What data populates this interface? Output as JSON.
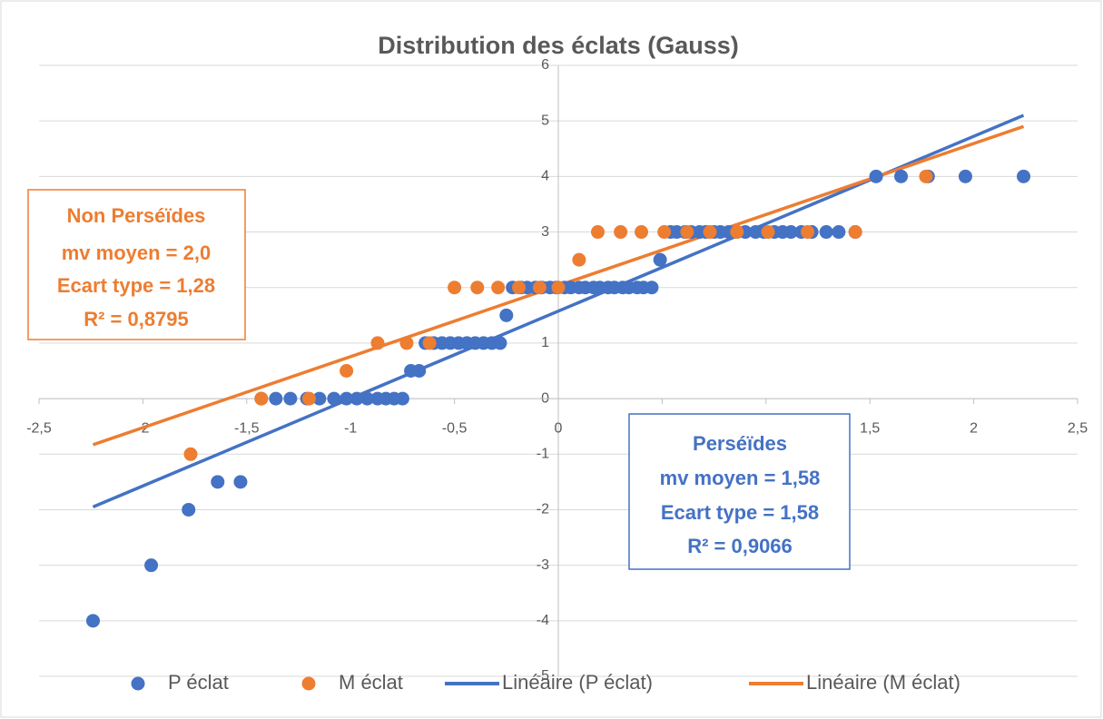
{
  "chart_data": {
    "type": "scatter",
    "title": "Distribution des éclats (Gauss)",
    "xlim": [
      -2.5,
      2.5
    ],
    "ylim": [
      -5,
      6
    ],
    "xticks": [
      {
        "value": -2.5,
        "label": "-2,5"
      },
      -2,
      {
        "value": -1.5,
        "label": "-1,5"
      },
      -1,
      {
        "value": -0.5,
        "label": "-0,5"
      },
      0,
      {
        "value": 0.5,
        "label": "0,5"
      },
      1,
      {
        "value": 1.5,
        "label": "1,5"
      },
      2,
      {
        "value": 2.5,
        "label": "2,5"
      }
    ],
    "yticks": [
      -5,
      -4,
      -3,
      -2,
      -1,
      0,
      1,
      2,
      3,
      4,
      5,
      6
    ],
    "grid": true,
    "legend": "bottom",
    "series": [
      {
        "name": "P éclat",
        "color": "#4472c4",
        "x": [
          -2.24,
          -1.96,
          -1.78,
          -1.64,
          -1.53,
          -1.43,
          -1.36,
          -1.29,
          -1.21,
          -1.15,
          -1.08,
          -1.02,
          -0.97,
          -0.92,
          -0.87,
          -0.83,
          -0.79,
          -0.75,
          -0.71,
          -0.67,
          -0.64,
          -0.6,
          -0.56,
          -0.52,
          -0.48,
          -0.44,
          -0.4,
          -0.36,
          -0.32,
          -0.28,
          -0.25,
          -0.22,
          -0.18,
          -0.15,
          -0.11,
          -0.08,
          -0.04,
          -0.01,
          0.03,
          0.06,
          0.1,
          0.13,
          0.17,
          0.2,
          0.24,
          0.27,
          0.31,
          0.34,
          0.38,
          0.41,
          0.45,
          0.49,
          0.54,
          0.57,
          0.61,
          0.64,
          0.68,
          0.71,
          0.75,
          0.78,
          0.82,
          0.86,
          0.9,
          0.95,
          0.99,
          1.04,
          1.08,
          1.12,
          1.17,
          1.22,
          1.29,
          1.35,
          1.43,
          1.53,
          1.65,
          1.78,
          1.96,
          2.24
        ],
        "values": [
          -4,
          -3,
          -2,
          -1.5,
          -1.5,
          0,
          0,
          0,
          0,
          0,
          0,
          0,
          0,
          0,
          0,
          0,
          0,
          0,
          0.5,
          0.5,
          1,
          1,
          1,
          1,
          1,
          1,
          1,
          1,
          1,
          1,
          1.5,
          2,
          2,
          2,
          2,
          2,
          2,
          2,
          2,
          2,
          2,
          2,
          2,
          2,
          2,
          2,
          2,
          2,
          2,
          2,
          2,
          2.5,
          3,
          3,
          3,
          3,
          3,
          3,
          3,
          3,
          3,
          3,
          3,
          3,
          3,
          3,
          3,
          3,
          3,
          3,
          3,
          3,
          3,
          4,
          4,
          4,
          4,
          4
        ]
      },
      {
        "name": "M éclat",
        "color": "#ed7d31",
        "x": [
          -1.77,
          -1.43,
          -1.2,
          -1.02,
          -0.87,
          -0.73,
          -0.62,
          -0.5,
          -0.39,
          -0.29,
          -0.19,
          -0.09,
          0.0,
          0.1,
          0.19,
          0.3,
          0.4,
          0.51,
          0.62,
          0.73,
          0.86,
          1.01,
          1.2,
          1.43,
          1.77
        ],
        "values": [
          -1,
          0,
          0,
          0.5,
          1,
          1,
          1,
          2,
          2,
          2,
          2,
          2,
          2,
          2.5,
          3,
          3,
          3,
          3,
          3,
          3,
          3,
          3,
          3,
          3,
          4
        ]
      }
    ],
    "trendlines": [
      {
        "name": "Linéaire (P éclat)",
        "color": "#4472c4",
        "x": [
          -2.24,
          2.24
        ],
        "values": [
          -1.95,
          5.1
        ]
      },
      {
        "name": "Linéaire (M éclat)",
        "color": "#ed7d31",
        "x": [
          -2.24,
          2.24
        ],
        "values": [
          -0.83,
          4.9
        ]
      }
    ],
    "annotations": [
      {
        "color": "#ed7d31",
        "lines": [
          "Non Perséïdes",
          "mv moyen = 2,0",
          "Ecart type = 1,28",
          "R² = 0,8795"
        ]
      },
      {
        "color": "#4472c4",
        "lines": [
          "Perséïdes",
          "mv moyen = 1,58",
          "Ecart type = 1,58",
          "R² = 0,9066"
        ]
      }
    ]
  }
}
